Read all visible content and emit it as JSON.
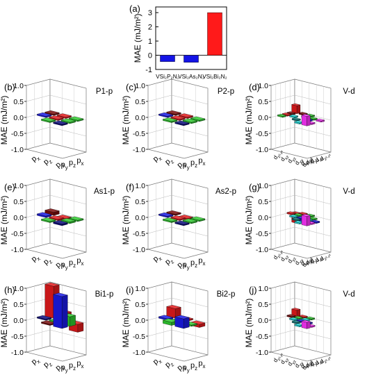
{
  "figure": {
    "panel_a": {
      "label": "(a)",
      "ylabel": "MAE (mJ/m²)",
      "yticks": [
        "-1",
        "0",
        "1",
        "2",
        "3"
      ],
      "ylim": [
        -1,
        3.4
      ],
      "categories": [
        "VSi₂P₂N₂",
        "VSi₂As₂N₂",
        "VSi₂Bi₂N₂"
      ],
      "values": [
        -0.45,
        -0.5,
        3.0
      ],
      "colors": [
        "#1414e6",
        "#1414e6",
        "#ff1a1a"
      ]
    },
    "zaxis": {
      "label": "MAE (mJ/m²)",
      "ticks": [
        "1.0",
        "0.5",
        "0.0",
        "-0.5",
        "-1.0"
      ]
    },
    "p_orbitals": [
      "px",
      "pz",
      "py"
    ],
    "d_orbitals": [
      "dz²-r²",
      "dxz",
      "dyz",
      "dxy",
      "dx²-y²"
    ],
    "colors": {
      "red": "#e31a1c",
      "darkred": "#7a0a0a",
      "green": "#2fcc2f",
      "blue": "#1a1ae6",
      "navy": "#0a0a80",
      "cyan": "#1fe0e0",
      "magenta": "#ff33ff",
      "teal": "#128080"
    }
  },
  "chart_data": [
    {
      "id": "a",
      "type": "bar",
      "title": "",
      "categories": [
        "VSi₂P₂N₂",
        "VSi₂As₂N₂",
        "VSi₂Bi₂N₂"
      ],
      "values": [
        -0.45,
        -0.5,
        3.0
      ],
      "ylabel": "MAE (mJ/m²)",
      "ylim": [
        -1,
        3.4
      ]
    },
    {
      "id": "b",
      "label": "(b)",
      "title": "P1-p",
      "type": "bar3d",
      "kind": "p",
      "zlabel": "MAE (mJ/m²)",
      "zlim": [
        -1,
        1
      ],
      "bars": [
        {
          "i": 0,
          "j": 0,
          "value": 0.0,
          "color": "darkred"
        },
        {
          "i": 0,
          "j": 1,
          "value": 0.0,
          "color": "red"
        },
        {
          "i": 0,
          "j": 2,
          "value": 0.0,
          "color": "green"
        },
        {
          "i": 1,
          "j": 1,
          "value": 0.0,
          "color": "red"
        },
        {
          "i": 1,
          "j": 2,
          "value": 0.0,
          "color": "green"
        },
        {
          "i": 2,
          "j": 1,
          "value": 0.0,
          "color": "green"
        },
        {
          "i": 2,
          "j": 2,
          "value": 0.0,
          "color": "navy"
        },
        {
          "i": 1,
          "j": 0,
          "value": 0.0,
          "color": "blue"
        }
      ]
    },
    {
      "id": "c",
      "label": "(c)",
      "title": "P2-p",
      "type": "bar3d",
      "kind": "p",
      "zlabel": "MAE (mJ/m²)",
      "zlim": [
        -1,
        1
      ],
      "bars": [
        {
          "i": 0,
          "j": 0,
          "value": 0.0,
          "color": "darkred"
        },
        {
          "i": 0,
          "j": 1,
          "value": 0.0,
          "color": "red"
        },
        {
          "i": 0,
          "j": 2,
          "value": 0.0,
          "color": "green"
        },
        {
          "i": 1,
          "j": 1,
          "value": 0.0,
          "color": "red"
        },
        {
          "i": 1,
          "j": 2,
          "value": 0.0,
          "color": "green"
        },
        {
          "i": 2,
          "j": 1,
          "value": 0.0,
          "color": "green"
        },
        {
          "i": 2,
          "j": 2,
          "value": 0.0,
          "color": "navy"
        },
        {
          "i": 1,
          "j": 0,
          "value": 0.0,
          "color": "blue"
        }
      ]
    },
    {
      "id": "d",
      "label": "(d)",
      "title": "V-d",
      "type": "bar3d",
      "kind": "d",
      "zlabel": "MAE (mJ/m²)",
      "zlim": [
        -1,
        1
      ],
      "bars": [
        {
          "i": 0,
          "j": 0,
          "value": 0.25,
          "color": "red"
        },
        {
          "i": 0,
          "j": 1,
          "value": 0.0,
          "color": "darkred"
        },
        {
          "i": 0,
          "j": 2,
          "value": 0.0,
          "color": "green"
        },
        {
          "i": 1,
          "j": 0,
          "value": 0.0,
          "color": "darkred"
        },
        {
          "i": 1,
          "j": 2,
          "value": 0.0,
          "color": "cyan"
        },
        {
          "i": 1,
          "j": 3,
          "value": 0.0,
          "color": "green"
        },
        {
          "i": 2,
          "j": 1,
          "value": 0.0,
          "color": "cyan"
        },
        {
          "i": 2,
          "j": 3,
          "value": 0.0,
          "color": "blue"
        },
        {
          "i": 3,
          "j": 2,
          "value": 0.0,
          "color": "teal"
        },
        {
          "i": 3,
          "j": 4,
          "value": 0.0,
          "color": "magenta"
        },
        {
          "i": 4,
          "j": 4,
          "value": 0.3,
          "color": "magenta"
        },
        {
          "i": 4,
          "j": 3,
          "value": 0.0,
          "color": "cyan"
        },
        {
          "i": 2,
          "j": 0,
          "value": 0.0,
          "color": "red"
        },
        {
          "i": 3,
          "j": 0,
          "value": 0.0,
          "color": "green"
        },
        {
          "i": 1,
          "j": 4,
          "value": 0.0,
          "color": "magenta"
        }
      ]
    },
    {
      "id": "e",
      "label": "(e)",
      "title": "As1-p",
      "type": "bar3d",
      "kind": "p",
      "zlabel": "MAE (mJ/m²)",
      "zlim": [
        -1,
        1
      ],
      "bars": [
        {
          "i": 0,
          "j": 0,
          "value": 0.1,
          "color": "darkred"
        },
        {
          "i": 0,
          "j": 1,
          "value": -0.1,
          "color": "red"
        },
        {
          "i": 0,
          "j": 2,
          "value": 0.0,
          "color": "green"
        },
        {
          "i": 1,
          "j": 1,
          "value": 0.0,
          "color": "red"
        },
        {
          "i": 1,
          "j": 2,
          "value": 0.05,
          "color": "green"
        },
        {
          "i": 2,
          "j": 1,
          "value": 0.0,
          "color": "green"
        },
        {
          "i": 2,
          "j": 2,
          "value": 0.05,
          "color": "navy"
        },
        {
          "i": 1,
          "j": 0,
          "value": 0.05,
          "color": "blue"
        }
      ]
    },
    {
      "id": "f",
      "label": "(f)",
      "title": "As2-p",
      "type": "bar3d",
      "kind": "p",
      "zlabel": "MAE (mJ/m²)",
      "zlim": [
        -1,
        1
      ],
      "bars": [
        {
          "i": 0,
          "j": 0,
          "value": 0.0,
          "color": "darkred"
        },
        {
          "i": 0,
          "j": 1,
          "value": -0.05,
          "color": "red"
        },
        {
          "i": 0,
          "j": 2,
          "value": 0.0,
          "color": "green"
        },
        {
          "i": 1,
          "j": 1,
          "value": 0.0,
          "color": "red"
        },
        {
          "i": 1,
          "j": 2,
          "value": 0.0,
          "color": "green"
        },
        {
          "i": 2,
          "j": 1,
          "value": 0.0,
          "color": "green"
        },
        {
          "i": 2,
          "j": 2,
          "value": 0.0,
          "color": "navy"
        },
        {
          "i": 1,
          "j": 0,
          "value": 0.0,
          "color": "blue"
        }
      ]
    },
    {
      "id": "g",
      "label": "(g)",
      "title": "V-d",
      "type": "bar3d",
      "kind": "d",
      "zlabel": "MAE (mJ/m²)",
      "zlim": [
        -1,
        1
      ],
      "bars": [
        {
          "i": 0,
          "j": 0,
          "value": -0.3,
          "color": "red"
        },
        {
          "i": 0,
          "j": 1,
          "value": 0.0,
          "color": "red"
        },
        {
          "i": 0,
          "j": 2,
          "value": 0.0,
          "color": "green"
        },
        {
          "i": 1,
          "j": 0,
          "value": 0.0,
          "color": "red"
        },
        {
          "i": 1,
          "j": 1,
          "value": 0.0,
          "color": "green"
        },
        {
          "i": 1,
          "j": 2,
          "value": 0.0,
          "color": "cyan"
        },
        {
          "i": 1,
          "j": 3,
          "value": 0.0,
          "color": "green"
        },
        {
          "i": 2,
          "j": 1,
          "value": 0.0,
          "color": "cyan"
        },
        {
          "i": 2,
          "j": 2,
          "value": 0.0,
          "color": "blue"
        },
        {
          "i": 2,
          "j": 3,
          "value": 0.0,
          "color": "cyan"
        },
        {
          "i": 3,
          "j": 2,
          "value": 0.0,
          "color": "teal"
        },
        {
          "i": 3,
          "j": 3,
          "value": 0.0,
          "color": "blue"
        },
        {
          "i": 3,
          "j": 4,
          "value": 0.0,
          "color": "magenta"
        },
        {
          "i": 4,
          "j": 3,
          "value": 0.0,
          "color": "cyan"
        },
        {
          "i": 4,
          "j": 4,
          "value": 0.3,
          "color": "magenta"
        },
        {
          "i": 2,
          "j": 4,
          "value": 0.0,
          "color": "blue"
        }
      ]
    },
    {
      "id": "h",
      "label": "(h)",
      "title": "Bi1-p",
      "type": "bar3d",
      "kind": "p",
      "zlabel": "MAE (mJ/m²)",
      "zlim": [
        -1,
        1
      ],
      "bars": [
        {
          "i": 0,
          "j": 0,
          "value": 1.0,
          "color": "red"
        },
        {
          "i": 0,
          "j": 1,
          "value": 0.25,
          "color": "red"
        },
        {
          "i": 0,
          "j": 2,
          "value": -0.25,
          "color": "red"
        },
        {
          "i": 1,
          "j": 1,
          "value": 0.0,
          "color": "green"
        },
        {
          "i": 1,
          "j": 2,
          "value": 0.3,
          "color": "green"
        },
        {
          "i": 2,
          "j": 1,
          "value": 0.0,
          "color": "darkred"
        },
        {
          "i": 2,
          "j": 2,
          "value": 1.0,
          "color": "blue"
        },
        {
          "i": 1,
          "j": 0,
          "value": 0.0,
          "color": "navy"
        }
      ]
    },
    {
      "id": "i",
      "label": "(i)",
      "title": "Bi2-p",
      "type": "bar3d",
      "kind": "p",
      "zlabel": "MAE (mJ/m²)",
      "zlim": [
        -1,
        1
      ],
      "bars": [
        {
          "i": 0,
          "j": 0,
          "value": 0.3,
          "color": "red"
        },
        {
          "i": 0,
          "j": 1,
          "value": 0.0,
          "color": "red"
        },
        {
          "i": 0,
          "j": 2,
          "value": -0.1,
          "color": "red"
        },
        {
          "i": 1,
          "j": 1,
          "value": 0.0,
          "color": "green"
        },
        {
          "i": 1,
          "j": 2,
          "value": 0.0,
          "color": "green"
        },
        {
          "i": 2,
          "j": 1,
          "value": 0.1,
          "color": "green"
        },
        {
          "i": 2,
          "j": 2,
          "value": 0.3,
          "color": "blue"
        },
        {
          "i": 1,
          "j": 0,
          "value": 0.05,
          "color": "blue"
        }
      ]
    },
    {
      "id": "j",
      "label": "(j)",
      "title": "V-d",
      "type": "bar3d",
      "kind": "d",
      "zlabel": "MAE (mJ/m²)",
      "zlim": [
        -1,
        1
      ],
      "bars": [
        {
          "i": 0,
          "j": 0,
          "value": 0.2,
          "color": "red"
        },
        {
          "i": 0,
          "j": 1,
          "value": 0.0,
          "color": "red"
        },
        {
          "i": 0,
          "j": 2,
          "value": 0.0,
          "color": "green"
        },
        {
          "i": 1,
          "j": 0,
          "value": 0.0,
          "color": "darkred"
        },
        {
          "i": 1,
          "j": 1,
          "value": 0.0,
          "color": "green"
        },
        {
          "i": 1,
          "j": 2,
          "value": 0.0,
          "color": "cyan"
        },
        {
          "i": 2,
          "j": 1,
          "value": 0.0,
          "color": "cyan"
        },
        {
          "i": 2,
          "j": 2,
          "value": 0.0,
          "color": "blue"
        },
        {
          "i": 3,
          "j": 2,
          "value": 0.0,
          "color": "teal"
        },
        {
          "i": 3,
          "j": 4,
          "value": 0.0,
          "color": "magenta"
        },
        {
          "i": 4,
          "j": 3,
          "value": 0.0,
          "color": "cyan"
        },
        {
          "i": 4,
          "j": 4,
          "value": 0.2,
          "color": "magenta"
        },
        {
          "i": 2,
          "j": 3,
          "value": 0.0,
          "color": "blue"
        }
      ]
    }
  ]
}
